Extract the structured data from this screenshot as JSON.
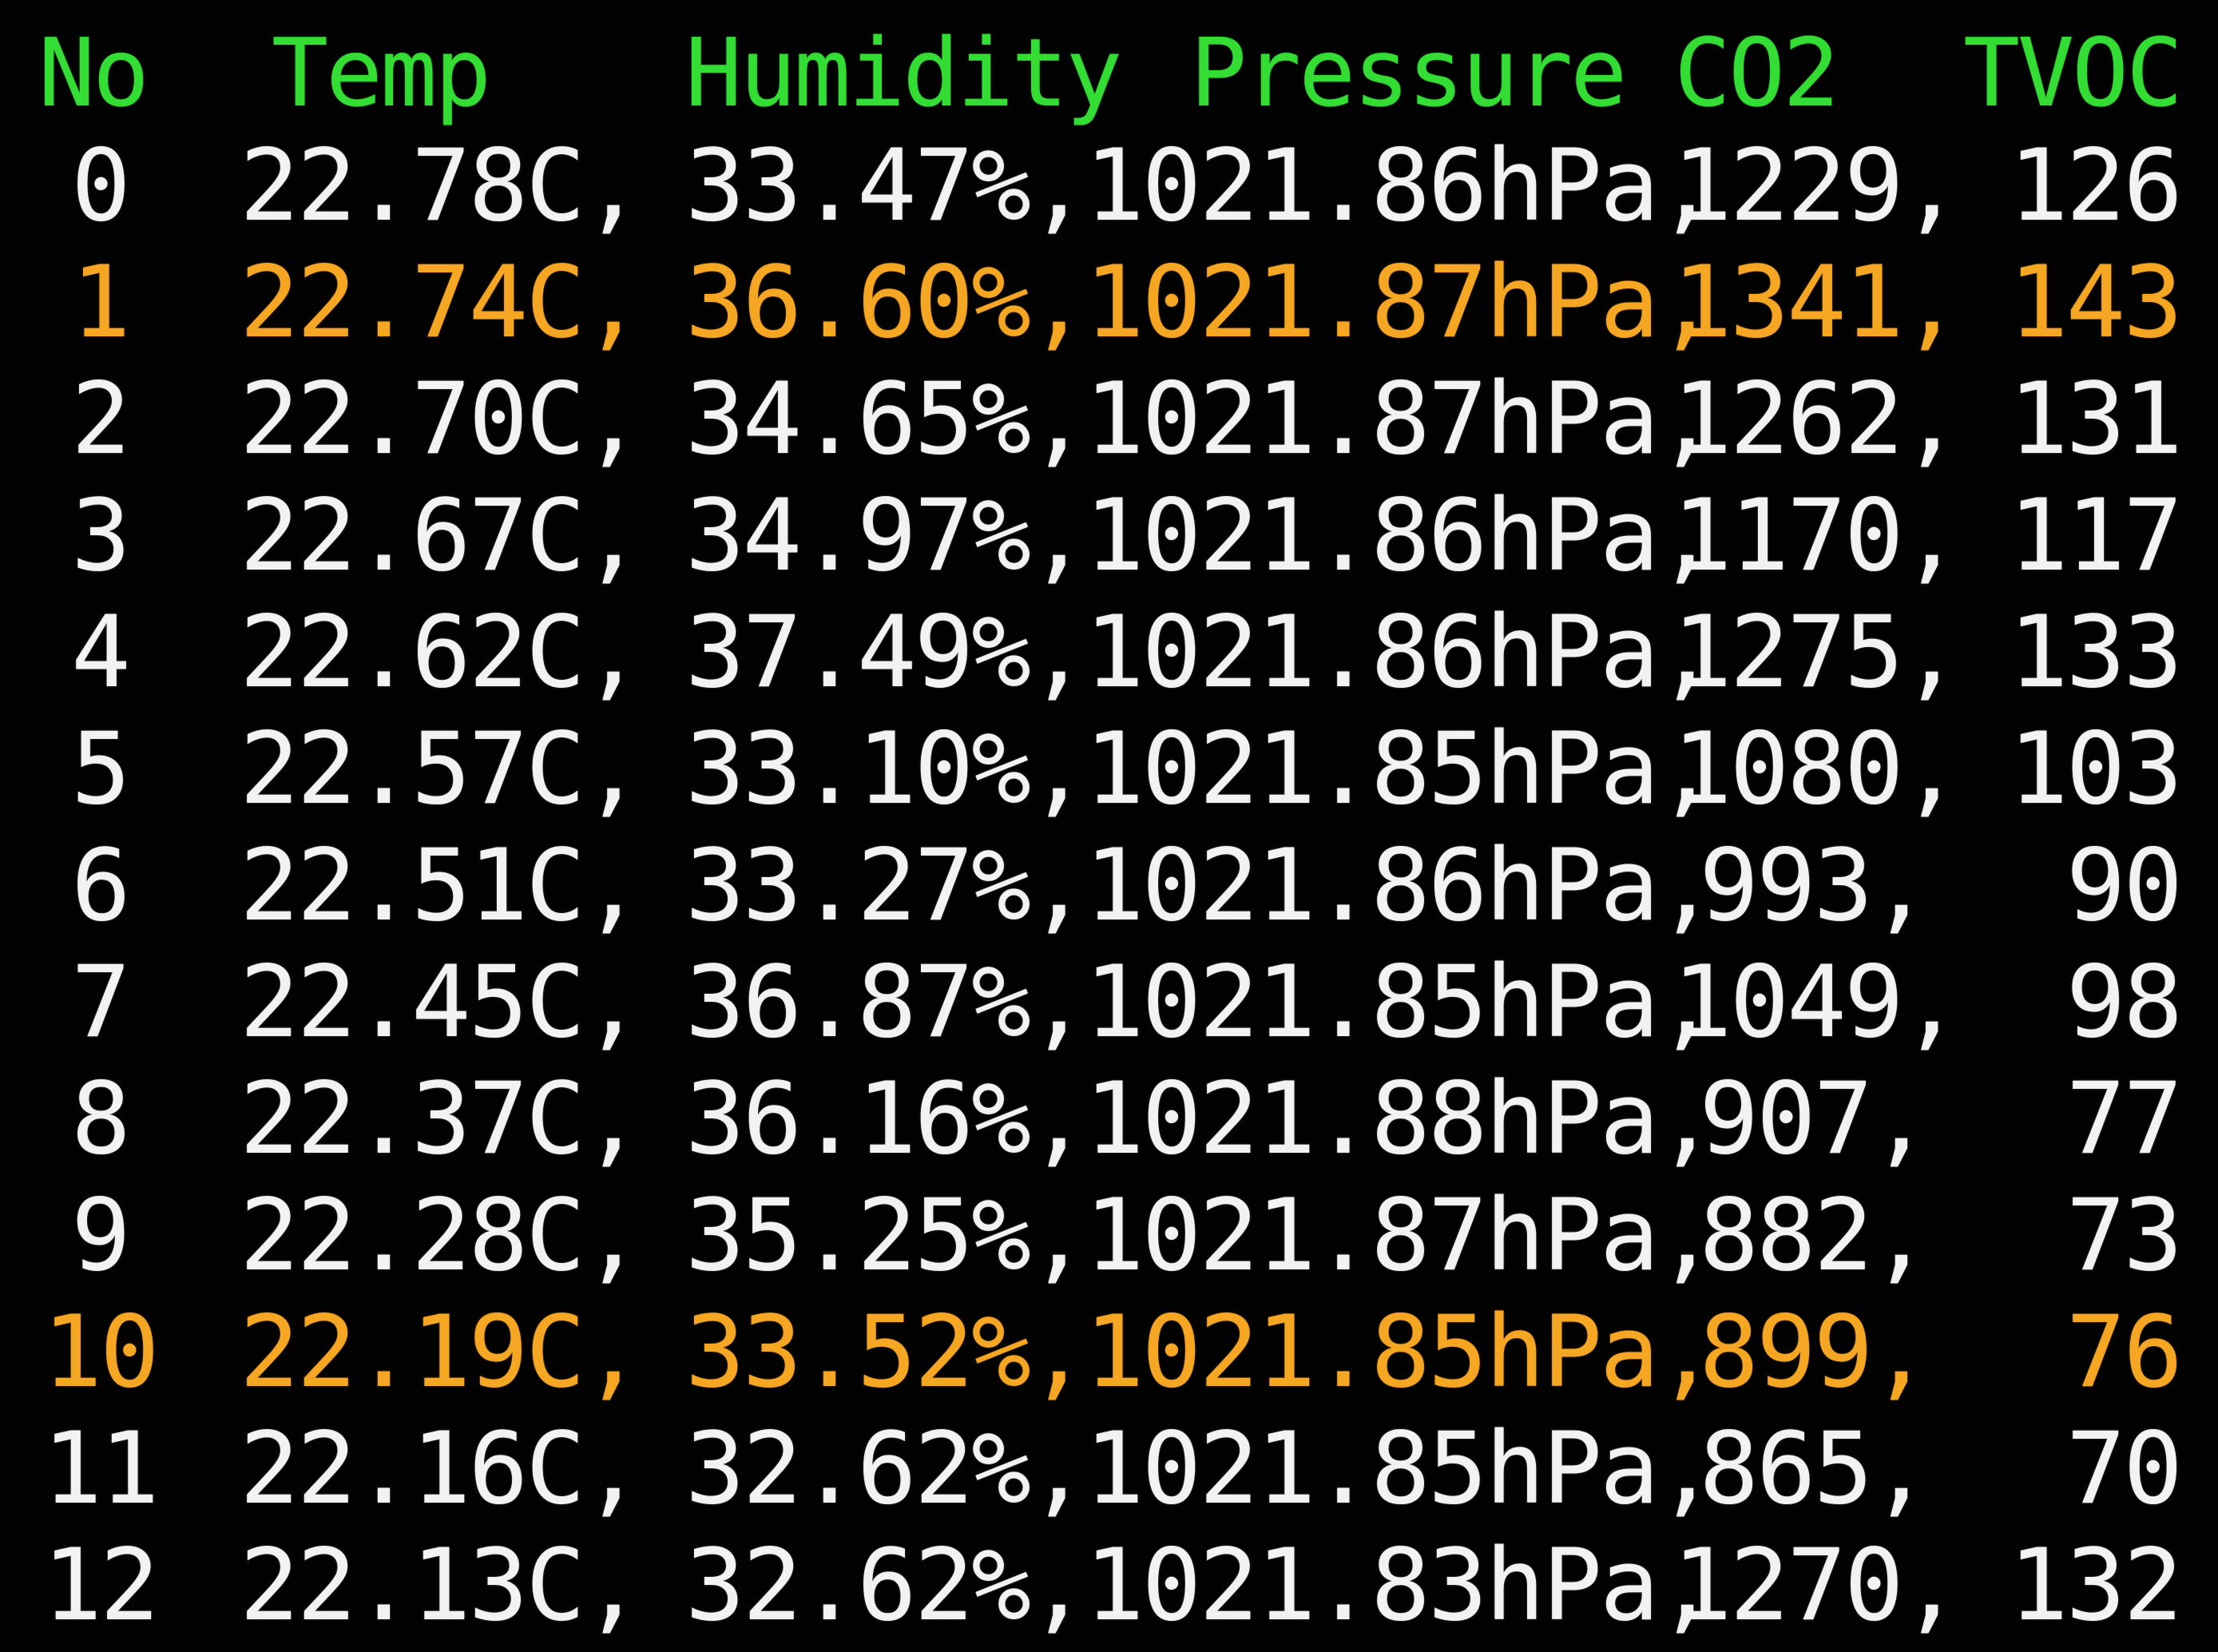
{
  "colors": {
    "background": "#020202",
    "header": "#33dd33",
    "text": "#f2f2f2",
    "highlight": "#f5a623"
  },
  "header": {
    "no": "No",
    "temp": "Temp",
    "humidity": "Humidity",
    "pressure": "Pressure",
    "co2": "CO2",
    "tvoc": "TVOC"
  },
  "rows": [
    {
      "no": "0",
      "temp": "22.78C,",
      "humidity": "33.47%,",
      "pressure": "1021.86hPa,",
      "co2": "1229,",
      "tvoc": "126",
      "highlight": false
    },
    {
      "no": "1",
      "temp": "22.74C,",
      "humidity": "36.60%,",
      "pressure": "1021.87hPa,",
      "co2": "1341,",
      "tvoc": "143",
      "highlight": true
    },
    {
      "no": "2",
      "temp": "22.70C,",
      "humidity": "34.65%,",
      "pressure": "1021.87hPa,",
      "co2": "1262,",
      "tvoc": "131",
      "highlight": false
    },
    {
      "no": "3",
      "temp": "22.67C,",
      "humidity": "34.97%,",
      "pressure": "1021.86hPa,",
      "co2": "1170,",
      "tvoc": "117",
      "highlight": false
    },
    {
      "no": "4",
      "temp": "22.62C,",
      "humidity": "37.49%,",
      "pressure": "1021.86hPa,",
      "co2": "1275,",
      "tvoc": "133",
      "highlight": false
    },
    {
      "no": "5",
      "temp": "22.57C,",
      "humidity": "33.10%,",
      "pressure": "1021.85hPa,",
      "co2": "1080,",
      "tvoc": "103",
      "highlight": false
    },
    {
      "no": "6",
      "temp": "22.51C,",
      "humidity": "33.27%,",
      "pressure": "1021.86hPa,",
      "co2": "993,",
      "tvoc": "90",
      "highlight": false
    },
    {
      "no": "7",
      "temp": "22.45C,",
      "humidity": "36.87%,",
      "pressure": "1021.85hPa,",
      "co2": "1049,",
      "tvoc": "98",
      "highlight": false
    },
    {
      "no": "8",
      "temp": "22.37C,",
      "humidity": "36.16%,",
      "pressure": "1021.88hPa,",
      "co2": "907,",
      "tvoc": "77",
      "highlight": false
    },
    {
      "no": "9",
      "temp": "22.28C,",
      "humidity": "35.25%,",
      "pressure": "1021.87hPa,",
      "co2": "882,",
      "tvoc": "73",
      "highlight": false
    },
    {
      "no": "10",
      "temp": "22.19C,",
      "humidity": "33.52%,",
      "pressure": "1021.85hPa,",
      "co2": "899,",
      "tvoc": "76",
      "highlight": true
    },
    {
      "no": "11",
      "temp": "22.16C,",
      "humidity": "32.62%,",
      "pressure": "1021.85hPa,",
      "co2": "865,",
      "tvoc": "70",
      "highlight": false
    },
    {
      "no": "12",
      "temp": "22.13C,",
      "humidity": "32.62%,",
      "pressure": "1021.83hPa,",
      "co2": "1270,",
      "tvoc": "132",
      "highlight": false
    }
  ]
}
